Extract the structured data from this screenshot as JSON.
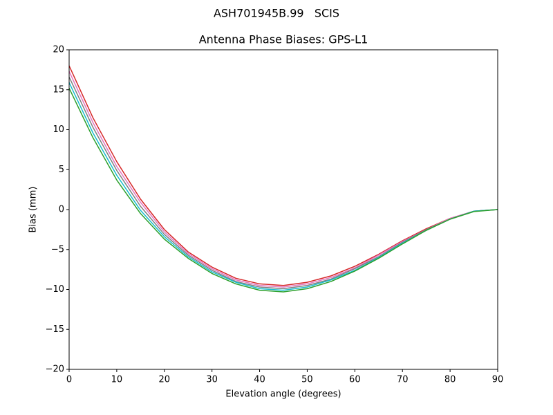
{
  "chart_data": {
    "type": "line",
    "suptitle": "ASH701945B.99   SCIS",
    "title": "Antenna Phase Biases: GPS-L1",
    "xlabel": "Elevation angle (degrees)",
    "ylabel": "Bias (mm)",
    "x": [
      0,
      5,
      10,
      15,
      20,
      25,
      30,
      35,
      40,
      45,
      50,
      55,
      60,
      65,
      70,
      75,
      80,
      85,
      90
    ],
    "series": [
      {
        "color": "#d62728",
        "values": [
          18,
          11.5,
          6.0,
          1.3,
          -2.5,
          -5.3,
          -7.2,
          -8.6,
          -9.3,
          -9.5,
          -9.1,
          -8.3,
          -7.1,
          -5.6,
          -3.9,
          -2.4,
          -1.1,
          -0.2,
          0
        ]
      },
      {
        "color": "#e377c2",
        "values": [
          17.3,
          10.9,
          5.4,
          0.9,
          -2.8,
          -5.5,
          -7.4,
          -8.8,
          -9.5,
          -9.7,
          -9.3,
          -8.5,
          -7.3,
          -5.7,
          -4.0,
          -2.5,
          -1.1,
          -0.2,
          0
        ]
      },
      {
        "color": "#7f7f7f",
        "values": [
          16.6,
          10.3,
          4.9,
          0.4,
          -3.1,
          -5.7,
          -7.6,
          -9.0,
          -9.7,
          -9.9,
          -9.5,
          -8.7,
          -7.4,
          -5.9,
          -4.1,
          -2.5,
          -1.2,
          -0.2,
          0
        ]
      },
      {
        "color": "#17becf",
        "values": [
          15.9,
          9.6,
          4.3,
          -0.1,
          -3.4,
          -5.9,
          -7.8,
          -9.1,
          -9.9,
          -10.1,
          -9.7,
          -8.8,
          -7.6,
          -6.0,
          -4.2,
          -2.6,
          -1.2,
          -0.2,
          0
        ]
      },
      {
        "color": "#2ca02c",
        "values": [
          15.2,
          9.0,
          3.7,
          -0.5,
          -3.7,
          -6.1,
          -8.0,
          -9.3,
          -10.1,
          -10.3,
          -9.9,
          -9.0,
          -7.7,
          -6.1,
          -4.3,
          -2.6,
          -1.2,
          -0.25,
          0
        ]
      }
    ],
    "xlim": [
      0,
      90
    ],
    "xticks": [
      0,
      10,
      20,
      30,
      40,
      50,
      60,
      70,
      80,
      90
    ],
    "ylim": [
      -20,
      20
    ],
    "yticks": [
      {
        "value": -20,
        "label": "−20"
      },
      {
        "value": -15,
        "label": "−15"
      },
      {
        "value": -10,
        "label": "−10"
      },
      {
        "value": -5,
        "label": "−5"
      },
      0,
      5,
      10,
      15,
      20
    ],
    "grid": false
  }
}
